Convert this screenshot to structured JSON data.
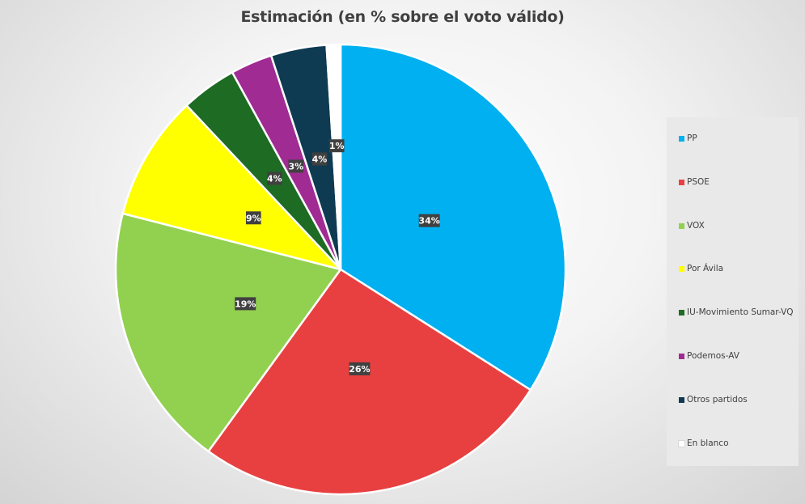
{
  "chart_data": {
    "type": "pie",
    "title": "Estimación (en % sobre el voto válido)",
    "categories": [
      "PP",
      "PSOE",
      "VOX",
      "Por Ávila",
      "IU-Movimiento Sumar-VQ",
      "Podemos-AV",
      "Otros partidos",
      "En blanco"
    ],
    "values": [
      34,
      26,
      19,
      9,
      4,
      3,
      4,
      1
    ],
    "value_labels": [
      "34%",
      "26%",
      "19%",
      "9%",
      "4%",
      "3%",
      "4%",
      "1%"
    ],
    "colors": [
      "#00B0F0",
      "#E84040",
      "#92D050",
      "#FFFF00",
      "#1E6B24",
      "#A02B93",
      "#0E3A52",
      "#FFFFFF"
    ],
    "legend_position": "right"
  }
}
